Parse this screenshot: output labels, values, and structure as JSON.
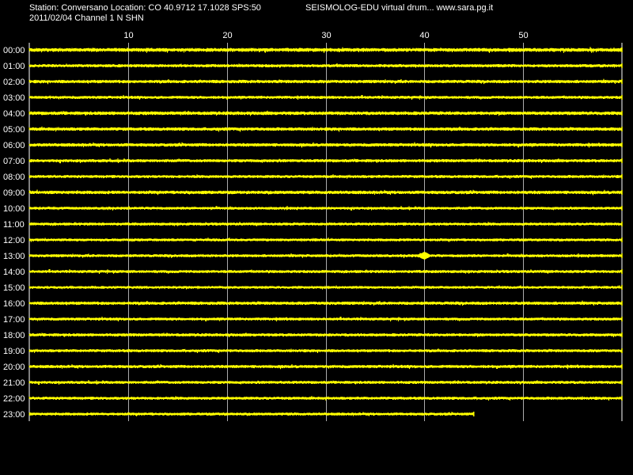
{
  "header": {
    "station_line": "Station: Conversano Location: CO 40.9712 17.1028 SPS:50",
    "date_line": "2011/02/04  Channel 1 N SHN",
    "title": "SEISMOLOG-EDU virtual drum... www.sara.pg.it"
  },
  "colors": {
    "background": "#000000",
    "trace": "#ffff00",
    "grid": "#ffffff",
    "text": "#ffffff"
  },
  "chart_data": {
    "type": "line",
    "title": "",
    "xlabel": "",
    "ylabel": "",
    "x_unit": "minutes",
    "xlim": [
      0,
      60
    ],
    "x_ticks": [
      10,
      20,
      30,
      40,
      50
    ],
    "grid": true,
    "rows": [
      {
        "label": "00:00",
        "amplitude": 2.4,
        "end_minute": 60
      },
      {
        "label": "01:00",
        "amplitude": 2.0,
        "end_minute": 60
      },
      {
        "label": "02:00",
        "amplitude": 2.1,
        "end_minute": 60
      },
      {
        "label": "03:00",
        "amplitude": 1.9,
        "end_minute": 60
      },
      {
        "label": "04:00",
        "amplitude": 2.3,
        "end_minute": 60
      },
      {
        "label": "05:00",
        "amplitude": 2.2,
        "end_minute": 60
      },
      {
        "label": "06:00",
        "amplitude": 2.2,
        "end_minute": 60
      },
      {
        "label": "07:00",
        "amplitude": 2.0,
        "end_minute": 60
      },
      {
        "label": "08:00",
        "amplitude": 1.9,
        "end_minute": 60
      },
      {
        "label": "09:00",
        "amplitude": 2.2,
        "end_minute": 60
      },
      {
        "label": "10:00",
        "amplitude": 1.8,
        "end_minute": 60
      },
      {
        "label": "11:00",
        "amplitude": 1.9,
        "end_minute": 60
      },
      {
        "label": "12:00",
        "amplitude": 1.8,
        "end_minute": 60
      },
      {
        "label": "13:00",
        "amplitude": 1.9,
        "end_minute": 60,
        "event_minute": 40,
        "event_amplitude": 5
      },
      {
        "label": "14:00",
        "amplitude": 1.9,
        "end_minute": 60
      },
      {
        "label": "15:00",
        "amplitude": 1.7,
        "end_minute": 60
      },
      {
        "label": "16:00",
        "amplitude": 2.1,
        "end_minute": 60
      },
      {
        "label": "17:00",
        "amplitude": 1.9,
        "end_minute": 60
      },
      {
        "label": "18:00",
        "amplitude": 2.0,
        "end_minute": 60
      },
      {
        "label": "19:00",
        "amplitude": 1.9,
        "end_minute": 60
      },
      {
        "label": "20:00",
        "amplitude": 2.0,
        "end_minute": 60
      },
      {
        "label": "21:00",
        "amplitude": 1.9,
        "end_minute": 60
      },
      {
        "label": "22:00",
        "amplitude": 1.9,
        "end_minute": 60
      },
      {
        "label": "23:00",
        "amplitude": 1.9,
        "end_minute": 45
      }
    ]
  }
}
